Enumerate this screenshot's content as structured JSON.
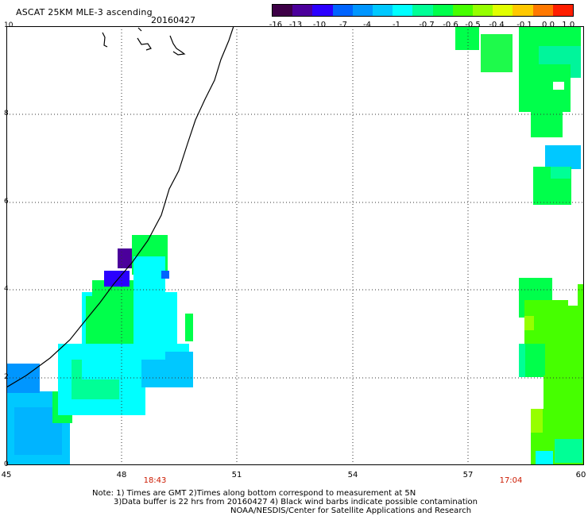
{
  "header": {
    "title": "ASCAT 25KM MLE-3 ascending",
    "date": "20160427"
  },
  "colorbar": {
    "colors": [
      "#3d0046",
      "#4b009b",
      "#2b00ff",
      "#0064ff",
      "#0096ff",
      "#00c8ff",
      "#00ffff",
      "#00ff96",
      "#00ff4b",
      "#46ff00",
      "#96ff00",
      "#e1ff00",
      "#ffc800",
      "#ff7800",
      "#ff1e00"
    ],
    "labels": [
      "-16",
      "-13",
      "-10",
      "-7",
      "-4",
      "-1",
      "-0.7",
      "-0.6",
      "-0.5",
      "-0.4",
      "-0.1",
      "0.0",
      "1.0"
    ]
  },
  "axes": {
    "x_labels": [
      "45",
      "48",
      "51",
      "54",
      "57",
      "60"
    ],
    "y_labels": [
      "0",
      "2",
      "4",
      "6",
      "8",
      "10"
    ]
  },
  "times": [
    "18:43",
    "17:04"
  ],
  "notes": {
    "line1": "Note: 1) Times are GMT 2)Times along bottom correspond to measurement at 5N",
    "line2": "3)Data buffer is 22 hrs from 20160427 4) Black wind barbs indicate possible contamination",
    "line3": "NOAA/NESDIS/Center for Satellite Applications and Research"
  }
}
